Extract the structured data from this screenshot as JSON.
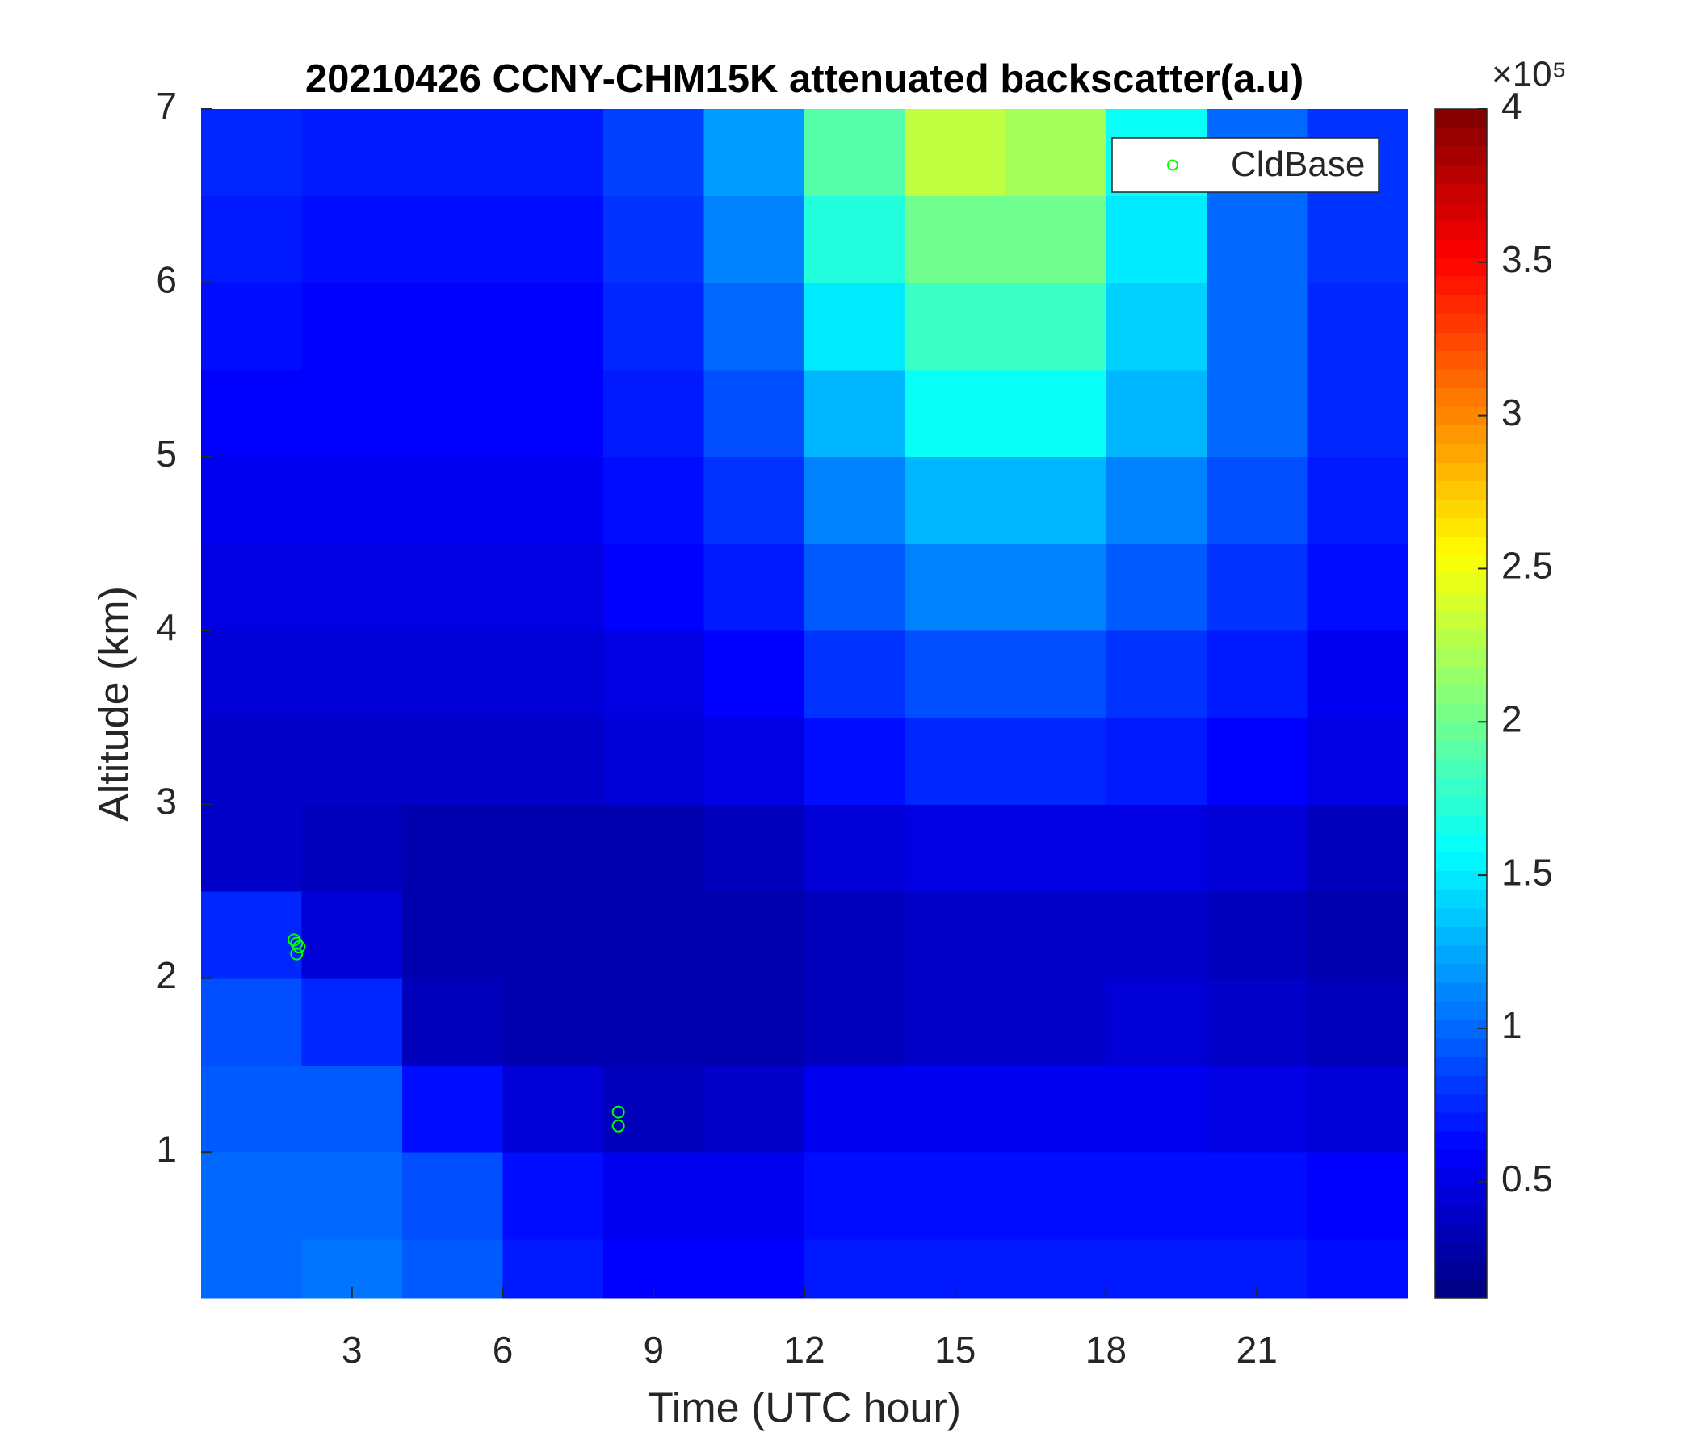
{
  "chart_data": {
    "type": "heatmap",
    "title": "20210426 CCNY-CHM15K attenuated backscatter(a.u)",
    "xlabel": "Time (UTC hour)",
    "ylabel": "Altitude (km)",
    "xlim": [
      0,
      24
    ],
    "ylim": [
      0.16,
      7
    ],
    "xticks": [
      3,
      6,
      9,
      12,
      15,
      18,
      21
    ],
    "yticks": [
      1,
      2,
      3,
      4,
      5,
      6,
      7
    ],
    "x_edges": [
      0,
      2,
      4,
      6,
      8,
      10,
      12,
      14,
      16,
      18,
      20,
      22,
      24
    ],
    "y_edges": [
      0.16,
      0.5,
      1,
      1.5,
      2,
      2.5,
      3,
      3.5,
      4,
      4.5,
      5,
      5.5,
      6,
      6.5,
      7
    ],
    "z": [
      [
        1.0,
        1.05,
        0.95,
        0.7,
        0.6,
        0.6,
        0.7,
        0.7,
        0.7,
        0.7,
        0.7,
        0.65
      ],
      [
        1.0,
        1.0,
        0.9,
        0.65,
        0.55,
        0.55,
        0.65,
        0.65,
        0.65,
        0.65,
        0.65,
        0.6
      ],
      [
        0.95,
        0.95,
        0.65,
        0.45,
        0.35,
        0.4,
        0.55,
        0.55,
        0.55,
        0.55,
        0.5,
        0.45
      ],
      [
        0.9,
        0.75,
        0.35,
        0.3,
        0.3,
        0.3,
        0.35,
        0.4,
        0.4,
        0.45,
        0.4,
        0.35
      ],
      [
        0.75,
        0.45,
        0.3,
        0.3,
        0.3,
        0.3,
        0.35,
        0.4,
        0.4,
        0.4,
        0.35,
        0.3
      ],
      [
        0.4,
        0.35,
        0.3,
        0.3,
        0.3,
        0.35,
        0.45,
        0.5,
        0.5,
        0.5,
        0.45,
        0.35
      ],
      [
        0.4,
        0.4,
        0.4,
        0.4,
        0.45,
        0.5,
        0.65,
        0.75,
        0.75,
        0.7,
        0.6,
        0.5
      ],
      [
        0.45,
        0.45,
        0.45,
        0.45,
        0.5,
        0.6,
        0.8,
        0.9,
        0.9,
        0.8,
        0.7,
        0.55
      ],
      [
        0.5,
        0.5,
        0.5,
        0.5,
        0.6,
        0.7,
        0.95,
        1.1,
        1.1,
        0.95,
        0.8,
        0.65
      ],
      [
        0.55,
        0.55,
        0.55,
        0.55,
        0.65,
        0.8,
        1.1,
        1.3,
        1.3,
        1.1,
        0.9,
        0.7
      ],
      [
        0.6,
        0.6,
        0.6,
        0.6,
        0.7,
        0.9,
        1.3,
        1.6,
        1.6,
        1.3,
        1.0,
        0.75
      ],
      [
        0.65,
        0.6,
        0.6,
        0.6,
        0.75,
        1.0,
        1.5,
        1.8,
        1.8,
        1.4,
        1.0,
        0.75
      ],
      [
        0.7,
        0.65,
        0.65,
        0.65,
        0.8,
        1.1,
        1.7,
        2.0,
        2.0,
        1.5,
        1.0,
        0.8
      ],
      [
        0.75,
        0.7,
        0.7,
        0.7,
        0.85,
        1.2,
        1.9,
        2.3,
        2.2,
        1.6,
        1.0,
        0.8
      ]
    ],
    "colormap": "jet",
    "clim": [
      0.12,
      4
    ],
    "cticks": [
      0.5,
      1,
      1.5,
      2,
      2.5,
      3,
      3.5,
      4
    ],
    "colorbar_exponent": "×10⁵",
    "legend": "upper right",
    "series": [
      {
        "type": "scatter",
        "name": "CldBase",
        "color": "#00ff00",
        "x": [
          1.85,
          1.9,
          1.95,
          1.9,
          8.3,
          8.3
        ],
        "y": [
          2.22,
          2.2,
          2.18,
          2.14,
          1.23,
          1.15
        ]
      }
    ]
  }
}
